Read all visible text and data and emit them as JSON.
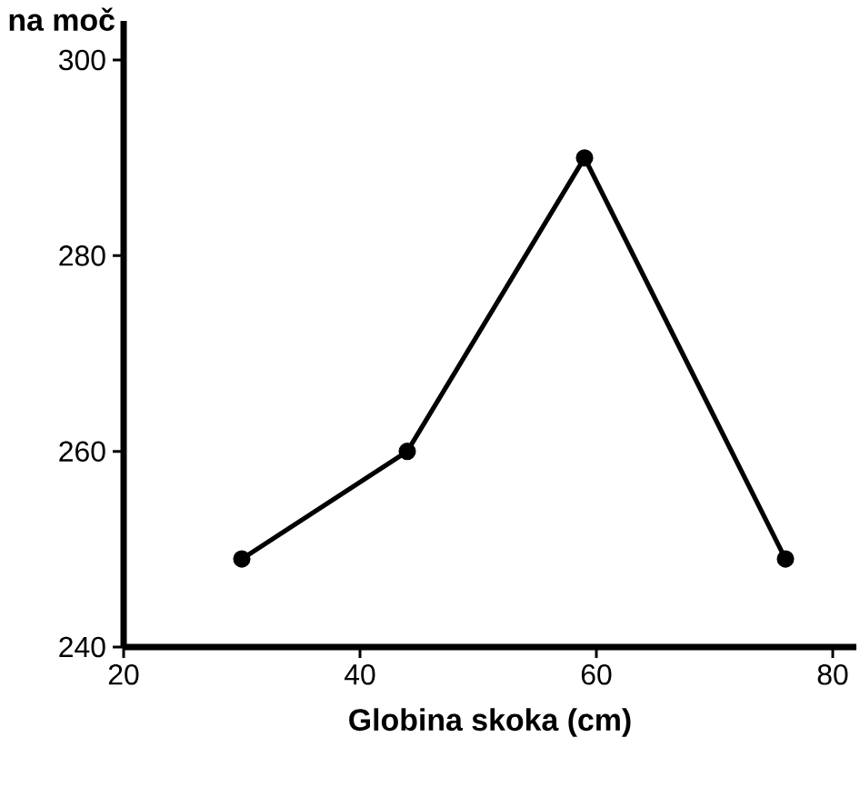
{
  "chart_data": {
    "type": "line",
    "ylabel": "na moč",
    "xlabel": "Globina skoka (cm)",
    "x": [
      30,
      44,
      59,
      76
    ],
    "series": [
      {
        "color": "#000000",
        "values": [
          249,
          260,
          290,
          249
        ]
      }
    ],
    "xlim": [
      20,
      82
    ],
    "ylim": [
      240,
      304
    ],
    "xticks": [
      20,
      40,
      60,
      80
    ],
    "yticks": [
      240,
      260,
      280,
      300
    ],
    "marker": "circle",
    "line_style": "solid",
    "grid": false
  }
}
